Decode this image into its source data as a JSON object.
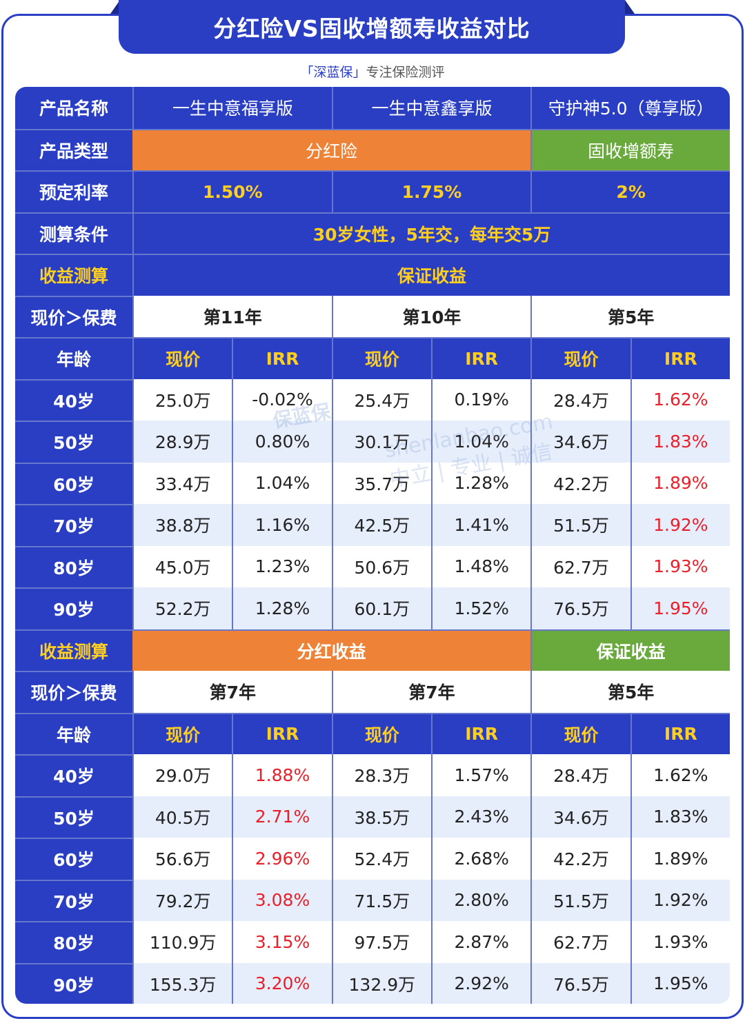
{
  "title": "分红险VS固收增额寿收益对比",
  "subtitle": {
    "brand": "「深蓝保」",
    "rest": "专注保险测评"
  },
  "header_rows": {
    "product_name": {
      "label": "产品名称",
      "values": [
        "一生中意福享版",
        "一生中意鑫享版",
        "守护神5.0（尊享版）"
      ]
    },
    "product_type": {
      "label": "产品类型",
      "dividend": "分红险",
      "fixed": "固收增额寿"
    },
    "rate": {
      "label": "预定利率",
      "values": [
        "1.50%",
        "1.75%",
        "2%"
      ]
    },
    "condition": {
      "label": "测算条件",
      "value": "30岁女性，5年交，每年交5万"
    }
  },
  "section1": {
    "label": "收益测算",
    "title": "保证收益",
    "cv_label": "现价＞保费",
    "cv_years": [
      "第11年",
      "第10年",
      "第5年"
    ],
    "age_label": "年龄",
    "col_cv": "现价",
    "col_irr": "IRR",
    "rows": [
      {
        "age": "40岁",
        "v": [
          "25.0万",
          "-0.02%",
          "25.4万",
          "0.19%",
          "28.4万",
          "1.62%"
        ]
      },
      {
        "age": "50岁",
        "v": [
          "28.9万",
          "0.80%",
          "30.1万",
          "1.04%",
          "34.6万",
          "1.83%"
        ]
      },
      {
        "age": "60岁",
        "v": [
          "33.4万",
          "1.04%",
          "35.7万",
          "1.28%",
          "42.2万",
          "1.89%"
        ]
      },
      {
        "age": "70岁",
        "v": [
          "38.8万",
          "1.16%",
          "42.5万",
          "1.41%",
          "51.5万",
          "1.92%"
        ]
      },
      {
        "age": "80岁",
        "v": [
          "45.0万",
          "1.23%",
          "50.6万",
          "1.48%",
          "62.7万",
          "1.93%"
        ]
      },
      {
        "age": "90岁",
        "v": [
          "52.2万",
          "1.28%",
          "60.1万",
          "1.52%",
          "76.5万",
          "1.95%"
        ]
      }
    ]
  },
  "section2": {
    "label": "收益测算",
    "title_dividend": "分红收益",
    "title_guaranteed": "保证收益",
    "cv_label": "现价＞保费",
    "cv_years": [
      "第7年",
      "第7年",
      "第5年"
    ],
    "age_label": "年龄",
    "col_cv": "现价",
    "col_irr": "IRR",
    "rows": [
      {
        "age": "40岁",
        "v": [
          "29.0万",
          "1.88%",
          "28.3万",
          "1.57%",
          "28.4万",
          "1.62%"
        ]
      },
      {
        "age": "50岁",
        "v": [
          "40.5万",
          "2.71%",
          "38.5万",
          "2.43%",
          "34.6万",
          "1.83%"
        ]
      },
      {
        "age": "60岁",
        "v": [
          "56.6万",
          "2.96%",
          "52.4万",
          "2.68%",
          "42.2万",
          "1.89%"
        ]
      },
      {
        "age": "70岁",
        "v": [
          "79.2万",
          "3.08%",
          "71.5万",
          "2.80%",
          "51.5万",
          "1.92%"
        ]
      },
      {
        "age": "80岁",
        "v": [
          "110.9万",
          "3.15%",
          "97.5万",
          "2.87%",
          "62.7万",
          "1.93%"
        ]
      },
      {
        "age": "90岁",
        "v": [
          "155.3万",
          "3.20%",
          "132.9万",
          "2.92%",
          "76.5万",
          "1.95%"
        ]
      }
    ]
  },
  "watermark": {
    "brand": "保蓝保",
    "site": "shenlanbao.com",
    "slogan": "中立 | 专业 | 诚信"
  },
  "colors": {
    "primary": "#2a3ec4",
    "orange": "#ee8236",
    "green": "#6aaa3c",
    "gold": "#ffcf1f",
    "red": "#e8202a",
    "stripe": "#e6eefb"
  }
}
